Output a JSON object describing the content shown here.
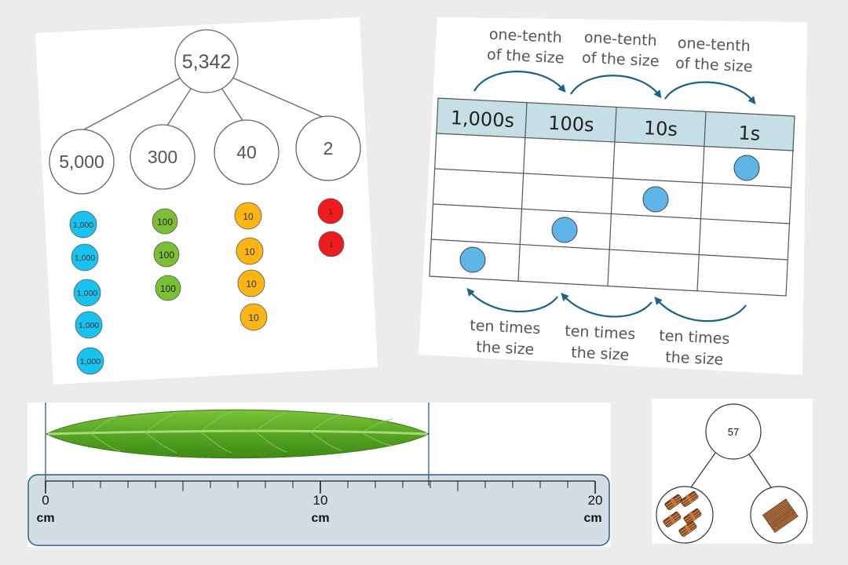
{
  "partition": {
    "whole": "5,342",
    "parts": [
      "5,000",
      "300",
      "40",
      "2"
    ],
    "counters": [
      {
        "label": "1,000",
        "count": 5,
        "color": "#19c3f0"
      },
      {
        "label": "100",
        "count": 3,
        "color": "#7bbf35"
      },
      {
        "label": "10",
        "count": 4,
        "color": "#fbb514"
      },
      {
        "label": "1",
        "count": 2,
        "color": "#ee1c1c"
      }
    ]
  },
  "place_value": {
    "headers": [
      "1,000s",
      "100s",
      "10s",
      "1s"
    ],
    "header_color": "#c6dfe6",
    "counter_color": "#5db5e8",
    "top_labels": [
      [
        "one-tenth",
        "of the size"
      ],
      [
        "one-tenth",
        "of the size"
      ],
      [
        "one-tenth",
        "of the size"
      ]
    ],
    "bottom_labels": [
      [
        "ten times",
        "the size"
      ],
      [
        "ten times",
        "the size"
      ],
      [
        "ten times",
        "the size"
      ]
    ],
    "arrow_color": "#1a6384"
  },
  "ruler": {
    "labels": [
      "0",
      "10",
      "20"
    ],
    "unit": "cm",
    "leaf_start_cm": 0,
    "leaf_end_cm": 14,
    "ruler_color": "#d3dde4",
    "leaf_color": "#4e9f1f"
  },
  "bundles": {
    "whole": "57",
    "left": {
      "icon": "bundle-of-ten-sticks-icon",
      "count": 5
    },
    "right": {
      "icon": "single-sticks-icon",
      "count": 7
    }
  }
}
